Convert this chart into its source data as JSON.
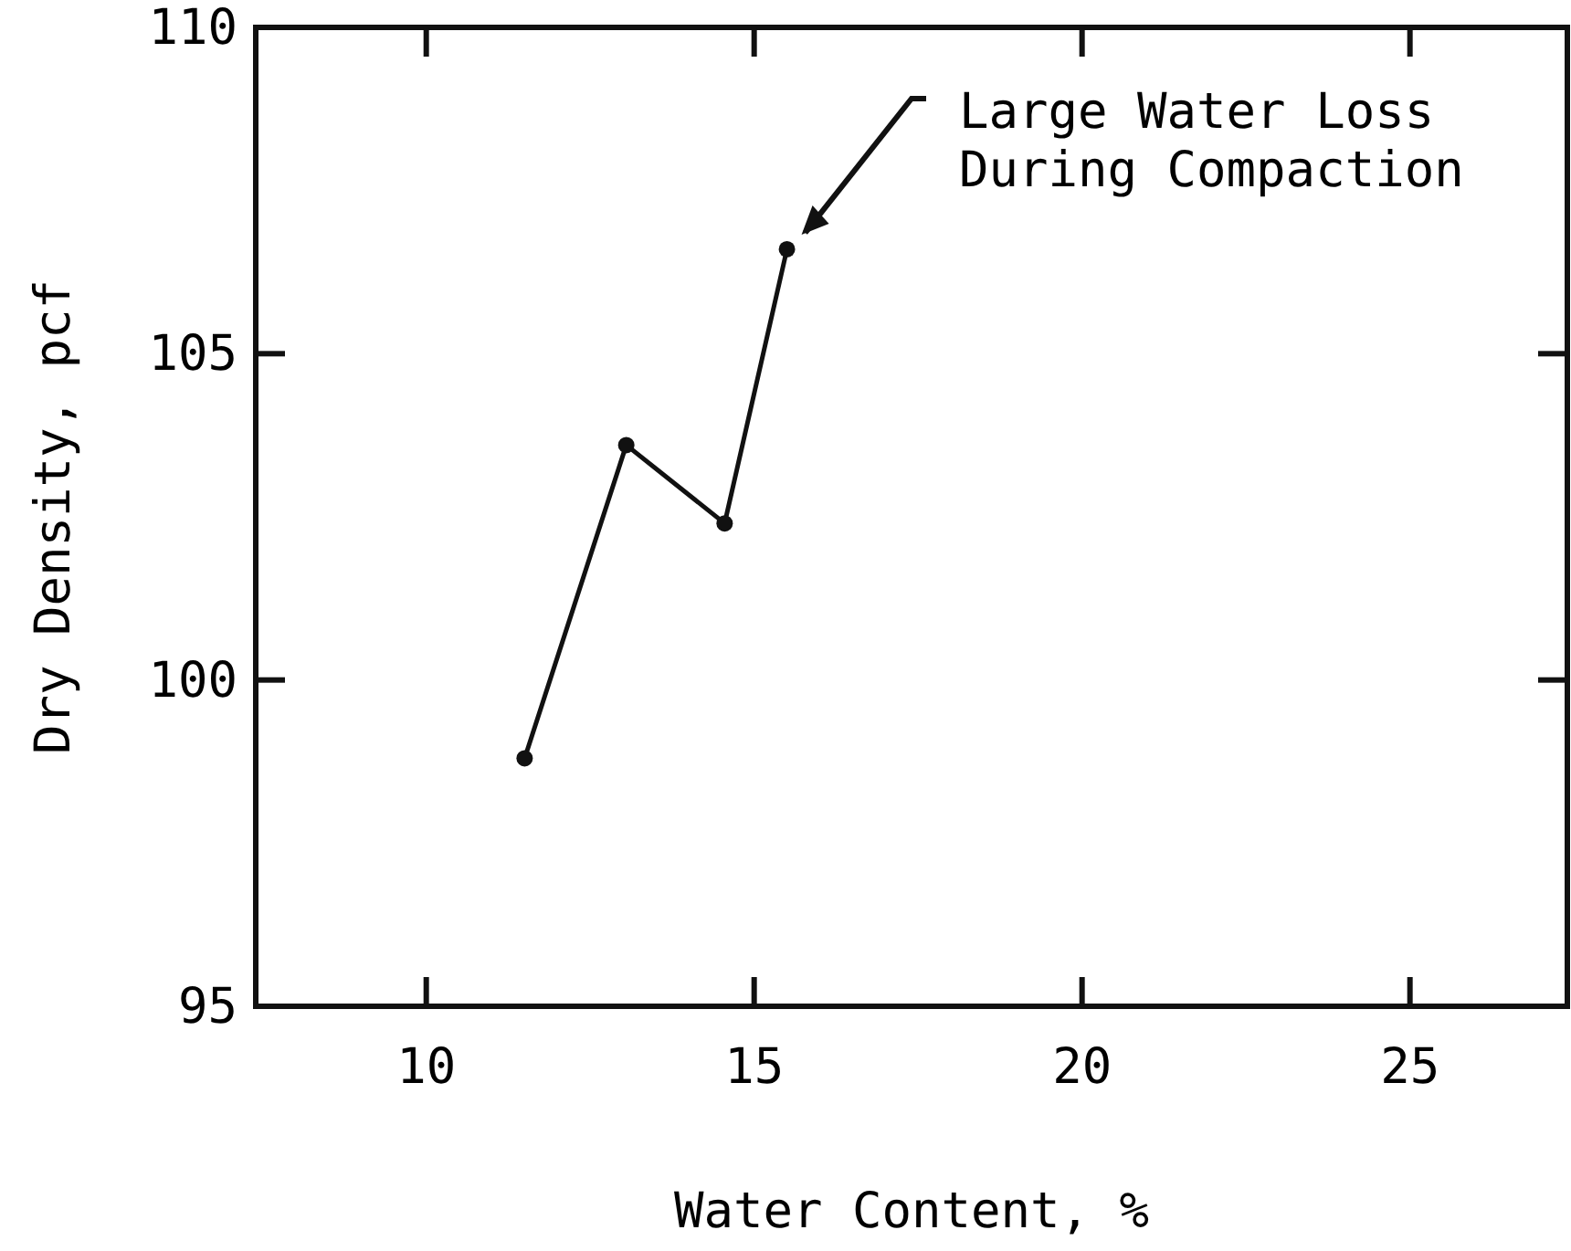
{
  "chart_data": {
    "type": "line",
    "xlabel": "Water Content, %",
    "ylabel": "Dry Density, pcf",
    "x": [
      11.5,
      13.05,
      14.55,
      15.5
    ],
    "series": [
      {
        "color": "#111111",
        "values": [
          98.8,
          103.6,
          102.4,
          106.6
        ]
      }
    ],
    "xlim": [
      7.4,
      27.4
    ],
    "xticks": [
      10,
      15,
      20,
      25
    ],
    "ylim": [
      95,
      110
    ],
    "yticks": [
      95,
      100,
      105,
      110
    ],
    "marker": "circle",
    "line_style": "solid",
    "grid": false,
    "annotations": [
      "Large Water Loss\nDuring Compaction"
    ]
  }
}
